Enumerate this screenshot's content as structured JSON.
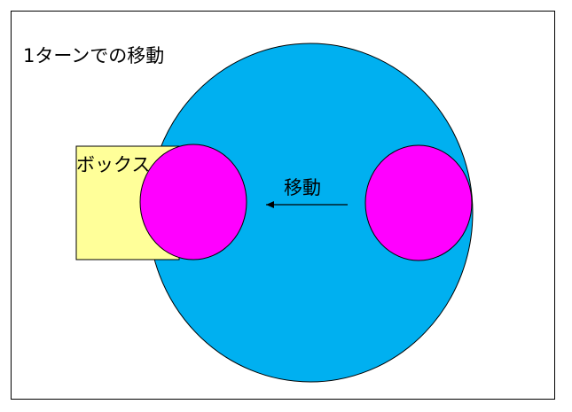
{
  "diagram": {
    "title": "1ターンでの移動",
    "box_label": "ボックス",
    "move_label": "移動",
    "colors": {
      "frame": "#000000",
      "field": "#00b0f0",
      "box": "#ffff99",
      "ball": "#ff00ff",
      "outline": "#000000",
      "text": "#000000"
    },
    "icons": {
      "arrow": "arrow-left-icon"
    }
  }
}
